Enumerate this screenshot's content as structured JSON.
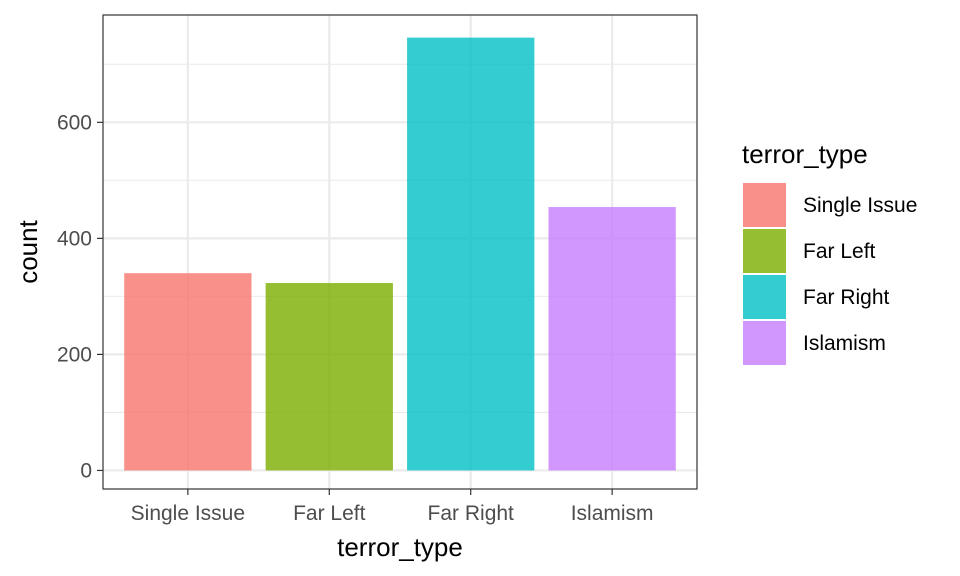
{
  "chart_data": {
    "type": "bar",
    "categories": [
      "Single Issue",
      "Far Left",
      "Far Right",
      "Islamism"
    ],
    "values": [
      340,
      323,
      746,
      454
    ],
    "colors": [
      "#F8766D",
      "#7CAE00",
      "#00BFC4",
      "#C77CFF"
    ],
    "bar_opacity": 0.8,
    "xlabel": "terror_type",
    "ylabel": "count",
    "ylim": [
      -32,
      785
    ],
    "y_ticks": [
      0,
      200,
      400,
      600
    ],
    "y_tick_labels": [
      "0",
      "200",
      "400",
      "600"
    ],
    "grid": true,
    "legend": {
      "title": "terror_type",
      "placement": "right",
      "items": [
        "Single Issue",
        "Far Left",
        "Far Right",
        "Islamism"
      ]
    }
  }
}
